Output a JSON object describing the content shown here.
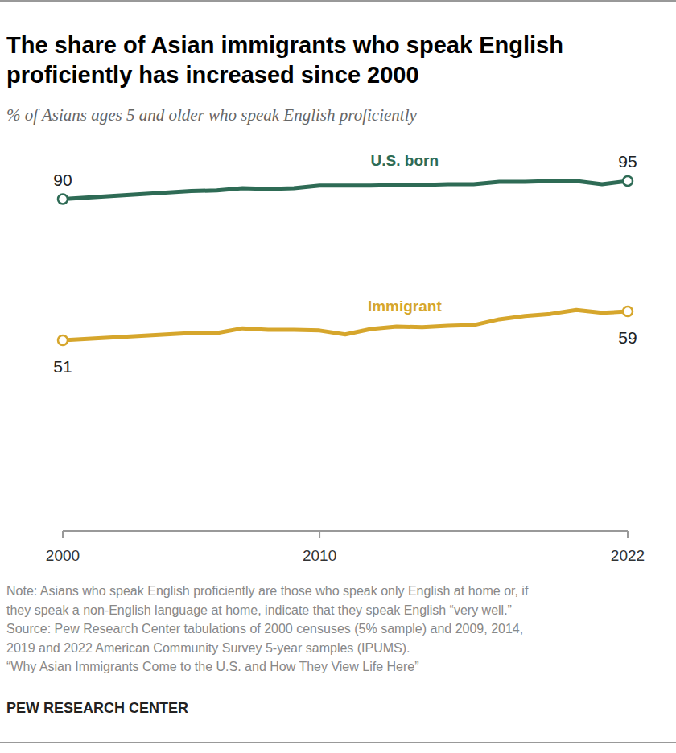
{
  "chart_data": {
    "type": "line",
    "title": [
      "The share of Asian immigrants who speak English",
      "proficiently has increased since 2000"
    ],
    "subtitle": "% of Asians ages 5 and older who speak English proficiently",
    "x": [
      2000,
      2005,
      2006,
      2007,
      2008,
      2009,
      2010,
      2011,
      2012,
      2013,
      2014,
      2015,
      2016,
      2017,
      2018,
      2019,
      2020,
      2021,
      2022
    ],
    "series": [
      {
        "name": "U.S. born",
        "color": "#2e6b55",
        "values": [
          90,
          92.2,
          92.4,
          93,
          92.8,
          93,
          93.7,
          93.7,
          93.7,
          93.9,
          93.9,
          94.1,
          94.1,
          94.8,
          94.8,
          95,
          95,
          94.1,
          95
        ],
        "value_labels": [
          "90",
          null,
          null,
          null,
          null,
          null,
          null,
          null,
          null,
          null,
          null,
          null,
          null,
          null,
          null,
          null,
          null,
          null,
          "95"
        ],
        "marker": "circle"
      },
      {
        "name": "Immigrant",
        "color": "#d6a62c",
        "values": [
          51,
          53,
          53,
          54.3,
          53.9,
          53.9,
          53.7,
          52.6,
          54.1,
          54.8,
          54.6,
          55,
          55.2,
          56.8,
          57.7,
          58.3,
          59.4,
          58.6,
          59
        ],
        "value_labels": [
          "51",
          null,
          null,
          null,
          null,
          null,
          null,
          null,
          null,
          null,
          null,
          null,
          null,
          null,
          null,
          null,
          null,
          null,
          "59"
        ],
        "marker": "circle"
      }
    ],
    "xlim": [
      2000,
      2022
    ],
    "xticks": [
      2000,
      2010,
      2022
    ],
    "ylim": [
      0,
      100
    ],
    "tick_labels": "x",
    "grid": false,
    "notes": [
      "Note: Asians who speak English proficiently are those who speak only English at home or, if",
      "they speak a non-English language at home, indicate that they speak English “very well.”",
      "Source: Pew Research Center tabulations of 2000 censuses (5% sample) and 2009, 2014,",
      "2019 and 2022 American Community Survey 5-year samples (IPUMS).",
      "“Why Asian Immigrants Come to the U.S. and How They View Life Here”"
    ],
    "credit": "PEW RESEARCH CENTER"
  }
}
